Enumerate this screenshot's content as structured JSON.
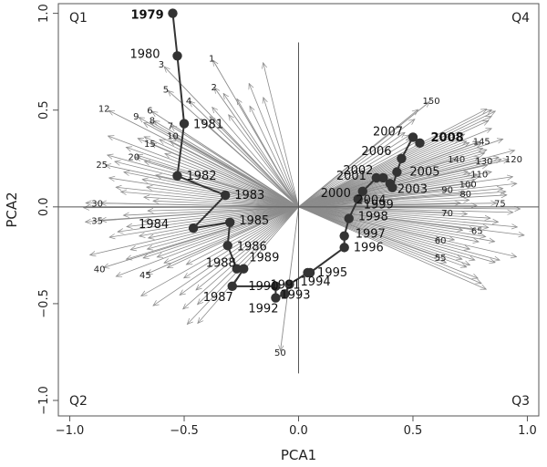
{
  "chart_data": {
    "type": "scatter",
    "xlabel": "PCA1",
    "ylabel": "PCA2",
    "xlim": [
      -1.05,
      1.05
    ],
    "ylim": [
      -1.08,
      1.05
    ],
    "xticks": [
      -1.0,
      -0.5,
      0.0,
      0.5,
      1.0
    ],
    "xtick_labels": [
      "−1.0",
      "−0.5",
      "0.0",
      "0.5",
      "1.0"
    ],
    "yticks": [
      -1.0,
      -0.5,
      0.0,
      0.5,
      1.0
    ],
    "ytick_labels": [
      "−1.0",
      "−0.5",
      "0.0",
      "0.5",
      "1.0"
    ],
    "zero_lines": true,
    "quadrants": [
      "Q1",
      "Q4",
      "Q2",
      "Q3"
    ],
    "colors": {
      "trajectory": "#333333",
      "points": "#333333",
      "vectors": "#8c8c8c",
      "frame": "#555555"
    },
    "trajectory": [
      {
        "year": "1979",
        "x": -0.55,
        "y": 1.0,
        "bold": true
      },
      {
        "year": "1980",
        "x": -0.53,
        "y": 0.78
      },
      {
        "year": "1981",
        "x": -0.5,
        "y": 0.43
      },
      {
        "year": "1982",
        "x": -0.53,
        "y": 0.16
      },
      {
        "year": "1983",
        "x": -0.32,
        "y": 0.06
      },
      {
        "year": "1984",
        "x": -0.46,
        "y": -0.11
      },
      {
        "year": "1985",
        "x": -0.3,
        "y": -0.08
      },
      {
        "year": "1986",
        "x": -0.31,
        "y": -0.2
      },
      {
        "year": "1988",
        "x": -0.27,
        "y": -0.32
      },
      {
        "year": "1989",
        "x": -0.24,
        "y": -0.32
      },
      {
        "year": "1987",
        "x": -0.29,
        "y": -0.41
      },
      {
        "year": "1990",
        "x": -0.1,
        "y": -0.41
      },
      {
        "year": "1992",
        "x": -0.1,
        "y": -0.47
      },
      {
        "year": "1991",
        "x": -0.06,
        "y": -0.45
      },
      {
        "year": "1993",
        "x": -0.04,
        "y": -0.4
      },
      {
        "year": "1994",
        "x": 0.04,
        "y": -0.34
      },
      {
        "year": "1995",
        "x": 0.05,
        "y": -0.34
      },
      {
        "year": "1996",
        "x": 0.2,
        "y": -0.21
      },
      {
        "year": "1997",
        "x": 0.2,
        "y": -0.15
      },
      {
        "year": "1998",
        "x": 0.22,
        "y": -0.06
      },
      {
        "year": "1999",
        "x": 0.26,
        "y": 0.04
      },
      {
        "year": "2000",
        "x": 0.28,
        "y": 0.08
      },
      {
        "year": "2001",
        "x": 0.34,
        "y": 0.15
      },
      {
        "year": "2002",
        "x": 0.37,
        "y": 0.15
      },
      {
        "year": "2003",
        "x": 0.4,
        "y": 0.12
      },
      {
        "year": "2004",
        "x": 0.41,
        "y": 0.1
      },
      {
        "year": "2005",
        "x": 0.43,
        "y": 0.18
      },
      {
        "year": "2006",
        "x": 0.45,
        "y": 0.25
      },
      {
        "year": "2007",
        "x": 0.5,
        "y": 0.36
      },
      {
        "year": "2008",
        "x": 0.53,
        "y": 0.33,
        "bold": true
      }
    ],
    "loading_labels": [
      {
        "label": "1",
        "x": -0.38,
        "y": 0.77
      },
      {
        "label": "2",
        "x": -0.37,
        "y": 0.62
      },
      {
        "label": "3",
        "x": -0.6,
        "y": 0.74
      },
      {
        "label": "4",
        "x": -0.48,
        "y": 0.55
      },
      {
        "label": "5",
        "x": -0.58,
        "y": 0.61
      },
      {
        "label": "6",
        "x": -0.65,
        "y": 0.5
      },
      {
        "label": "7",
        "x": -0.56,
        "y": 0.42
      },
      {
        "label": "8",
        "x": -0.64,
        "y": 0.45
      },
      {
        "label": "9",
        "x": -0.71,
        "y": 0.47
      },
      {
        "label": "10",
        "x": -0.55,
        "y": 0.37
      },
      {
        "label": "12",
        "x": -0.85,
        "y": 0.51
      },
      {
        "label": "15",
        "x": -0.65,
        "y": 0.33
      },
      {
        "label": "20",
        "x": -0.72,
        "y": 0.26
      },
      {
        "label": "25",
        "x": -0.86,
        "y": 0.22
      },
      {
        "label": "30",
        "x": -0.88,
        "y": 0.02
      },
      {
        "label": "35",
        "x": -0.88,
        "y": -0.07
      },
      {
        "label": "40",
        "x": -0.87,
        "y": -0.32
      },
      {
        "label": "45",
        "x": -0.67,
        "y": -0.35
      },
      {
        "label": "50",
        "x": -0.08,
        "y": -0.75
      },
      {
        "label": "55",
        "x": 0.62,
        "y": -0.26
      },
      {
        "label": "60",
        "x": 0.62,
        "y": -0.17
      },
      {
        "label": "65",
        "x": 0.78,
        "y": -0.12
      },
      {
        "label": "70",
        "x": 0.65,
        "y": -0.03
      },
      {
        "label": "75",
        "x": 0.88,
        "y": 0.02
      },
      {
        "label": "80",
        "x": 0.73,
        "y": 0.07
      },
      {
        "label": "90",
        "x": 0.65,
        "y": 0.09
      },
      {
        "label": "100",
        "x": 0.74,
        "y": 0.12
      },
      {
        "label": "110",
        "x": 0.79,
        "y": 0.17
      },
      {
        "label": "120",
        "x": 0.94,
        "y": 0.25
      },
      {
        "label": "130",
        "x": 0.81,
        "y": 0.24
      },
      {
        "label": "140",
        "x": 0.69,
        "y": 0.25
      },
      {
        "label": "145",
        "x": 0.8,
        "y": 0.34
      },
      {
        "label": "150",
        "x": 0.58,
        "y": 0.55
      }
    ]
  }
}
